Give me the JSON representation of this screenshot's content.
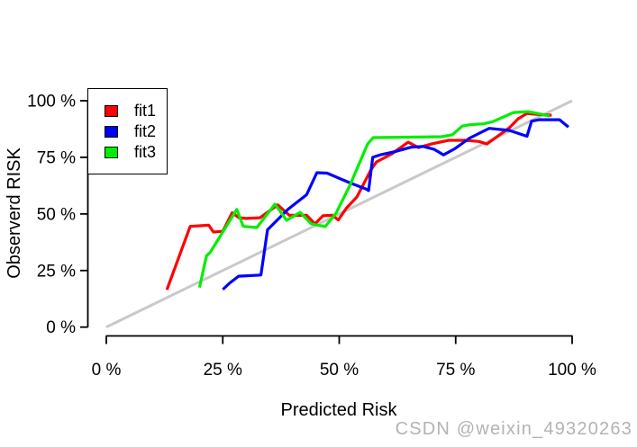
{
  "watermark": {
    "text": "CSDN @weixin_49320263",
    "color": "#b3b3b3"
  },
  "legend": {
    "position": "top-left",
    "items": [
      {
        "label": "fit1"
      },
      {
        "label": "fit2"
      },
      {
        "label": "fit3"
      }
    ]
  },
  "chart_data": {
    "type": "line",
    "title": "",
    "xlabel": "Predicted Risk",
    "ylabel": "Observerd RISK",
    "xlim": [
      0,
      100
    ],
    "ylim": [
      0,
      100
    ],
    "grid": "off",
    "legend_position": "top-left",
    "x_tick_values": [
      0,
      25,
      50,
      75,
      100
    ],
    "x_tick_labels": [
      "0 %",
      "25 %",
      "50 %",
      "75 %",
      "100 %"
    ],
    "y_tick_values": [
      0,
      25,
      50,
      75,
      100
    ],
    "y_tick_labels": [
      "0 %",
      "25 %",
      "50 %",
      "75 %",
      "100 %"
    ],
    "reference_line": {
      "name": "identity-diagonal",
      "x": [
        0,
        100
      ],
      "y": [
        0,
        100
      ],
      "color": "#c9c9c9"
    },
    "series": [
      {
        "name": "fit1",
        "color": "#ff0000",
        "points": [
          [
            13,
            16.5
          ],
          [
            18,
            44.5
          ],
          [
            22,
            45
          ],
          [
            23,
            42
          ],
          [
            25,
            42.3
          ],
          [
            27,
            50.5
          ],
          [
            28.5,
            48.3
          ],
          [
            30,
            48
          ],
          [
            33,
            48.3
          ],
          [
            36.8,
            54
          ],
          [
            39.3,
            49.4
          ],
          [
            43,
            49.4
          ],
          [
            44.8,
            45.6
          ],
          [
            46.5,
            49.2
          ],
          [
            48.5,
            49.4
          ],
          [
            49.8,
            47.3
          ],
          [
            51.5,
            52.5
          ],
          [
            53.8,
            57.5
          ],
          [
            56.8,
            69.5
          ],
          [
            58,
            73
          ],
          [
            61.3,
            76.5
          ],
          [
            64.8,
            81.7
          ],
          [
            67,
            79.3
          ],
          [
            70,
            81
          ],
          [
            73.5,
            82.5
          ],
          [
            77,
            82.5
          ],
          [
            80,
            82
          ],
          [
            81.7,
            80.9
          ],
          [
            86.5,
            88
          ],
          [
            88.4,
            92
          ],
          [
            90.3,
            94.4
          ],
          [
            92.3,
            94
          ],
          [
            95.6,
            93.6
          ]
        ]
      },
      {
        "name": "fit2",
        "color": "#0000ff",
        "points": [
          [
            25,
            16.6
          ],
          [
            26.5,
            19.5
          ],
          [
            28.4,
            22.5
          ],
          [
            33.2,
            23
          ],
          [
            34.6,
            43
          ],
          [
            39,
            52
          ],
          [
            43,
            58.5
          ],
          [
            45.2,
            68.2
          ],
          [
            47.4,
            68
          ],
          [
            52.2,
            63.8
          ],
          [
            55.8,
            61
          ],
          [
            56.3,
            60.3
          ],
          [
            57.2,
            75
          ],
          [
            59,
            76.2
          ],
          [
            62,
            77.5
          ],
          [
            65.5,
            79.5
          ],
          [
            68,
            79.8
          ],
          [
            70.4,
            78.5
          ],
          [
            72.4,
            76.1
          ],
          [
            74.9,
            78.9
          ],
          [
            78,
            83.5
          ],
          [
            82.2,
            87.8
          ],
          [
            86.5,
            86.9
          ],
          [
            90.3,
            84.3
          ],
          [
            91.3,
            91
          ],
          [
            93,
            91.6
          ],
          [
            97.3,
            91.6
          ],
          [
            99.2,
            88.4
          ]
        ]
      },
      {
        "name": "fit3",
        "color": "#00ee00",
        "points": [
          [
            20,
            17.5
          ],
          [
            21.5,
            31.5
          ],
          [
            22.3,
            33
          ],
          [
            28,
            52
          ],
          [
            29.4,
            44.5
          ],
          [
            32.3,
            44
          ],
          [
            36.2,
            54.3
          ],
          [
            38.7,
            47.2
          ],
          [
            41.6,
            50.7
          ],
          [
            44,
            45.6
          ],
          [
            47,
            44.4
          ],
          [
            49.3,
            50.3
          ],
          [
            52.2,
            62.2
          ],
          [
            56.1,
            80.9
          ],
          [
            57.3,
            83.7
          ],
          [
            65,
            83.9
          ],
          [
            72,
            84.1
          ],
          [
            74.3,
            85
          ],
          [
            76.4,
            88.8
          ],
          [
            78,
            89.4
          ],
          [
            81,
            89.8
          ],
          [
            83,
            90.8
          ],
          [
            87.4,
            94.8
          ],
          [
            90.5,
            95.2
          ],
          [
            93,
            94.2
          ],
          [
            95.2,
            93.2
          ]
        ]
      }
    ]
  }
}
